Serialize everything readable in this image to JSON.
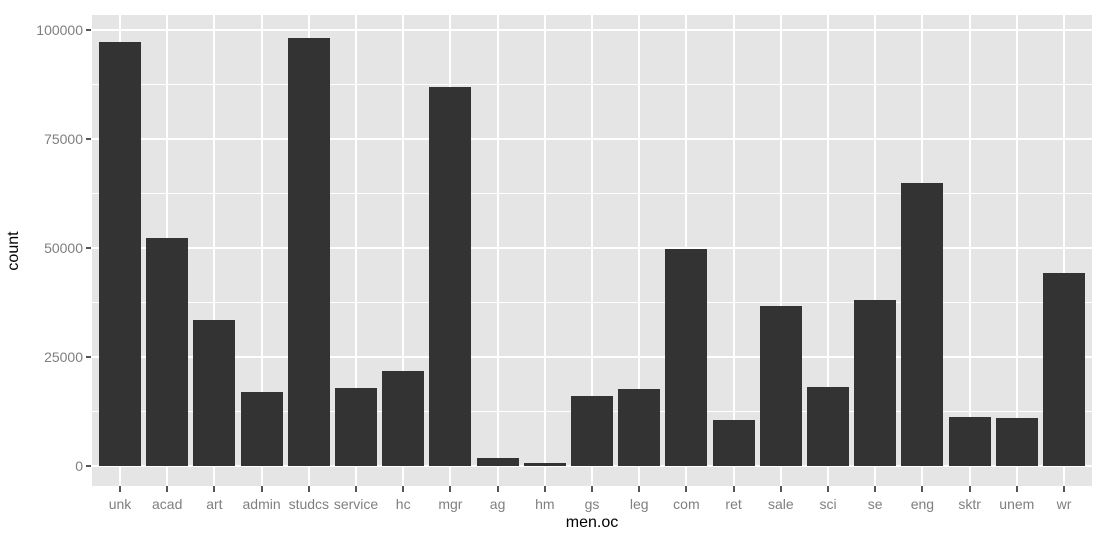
{
  "chart_data": {
    "type": "bar",
    "title": "",
    "xlabel": "men.oc",
    "ylabel": "count",
    "categories": [
      "unk",
      "acad",
      "art",
      "admin",
      "studcs",
      "service",
      "hc",
      "mgr",
      "ag",
      "hm",
      "gs",
      "leg",
      "com",
      "ret",
      "sale",
      "sci",
      "se",
      "eng",
      "sktr",
      "unem",
      "wr"
    ],
    "values": [
      97200,
      52400,
      33600,
      16900,
      98100,
      17800,
      21700,
      87000,
      1800,
      600,
      16000,
      17700,
      49800,
      10600,
      36600,
      18100,
      38100,
      64800,
      11300,
      11000,
      44300
    ],
    "ylim": [
      0,
      100000
    ],
    "yticks": [
      0,
      25000,
      50000,
      75000,
      100000
    ],
    "ytick_labels": [
      "0",
      "25000",
      "50000",
      "75000",
      "100000"
    ],
    "yminor_ticks": [
      12500,
      37500,
      62500,
      87500
    ],
    "grid": true,
    "legend_position": "none"
  },
  "style": {
    "bar_color": "#333333",
    "panel_bg": "#e5e5e5",
    "gridline_color": "#ffffff",
    "tick_label_color": "#7f7f7f",
    "axis_title_color": "#000000",
    "tick_mark_color": "#555555",
    "background": "#ffffff"
  }
}
